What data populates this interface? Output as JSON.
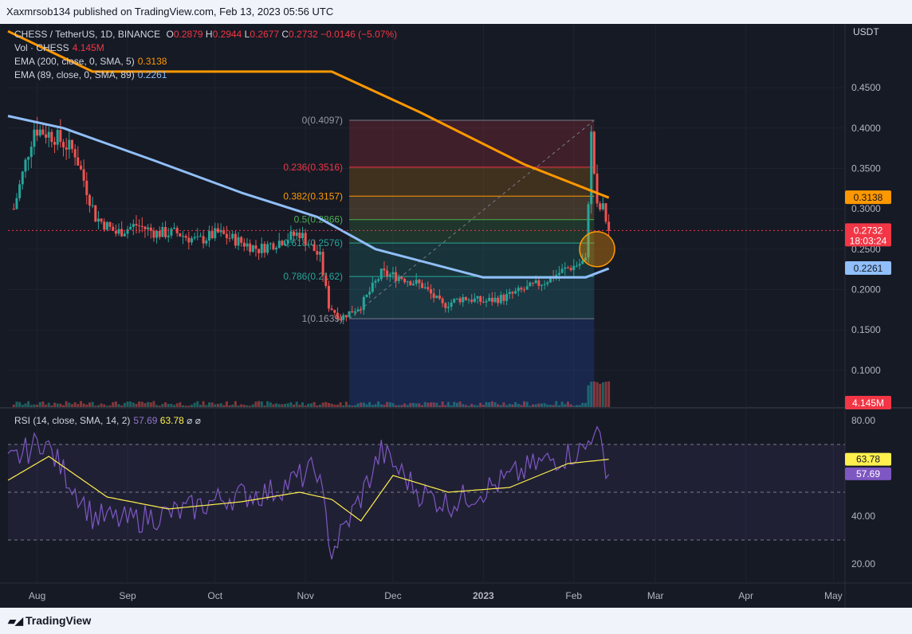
{
  "header": {
    "published": "Xaxmrsob134 published on TradingView.com, Feb 13, 2023 05:56 UTC"
  },
  "legend": {
    "symbol": "CHESS / TetherUS, 1D, BINANCE",
    "o_label": "O",
    "o": "0.2879",
    "h_label": "H",
    "h": "0.2944",
    "l_label": "L",
    "l": "0.2677",
    "c_label": "C",
    "c": "0.2732",
    "change": "−0.0146 (−5.07%)",
    "vol_label": "Vol · CHESS",
    "vol": "4.145M",
    "ema200_label": "EMA (200, close, 0, SMA, 5)",
    "ema200": "0.3138",
    "ema89_label": "EMA (89, close, 0, SMA, 89)",
    "ema89": "0.2261",
    "rsi_label": "RSI (14, close, SMA, 14, 2)",
    "rsi": "57.69",
    "rsi_sma": "63.78",
    "rsi_extra": "⌀ ⌀"
  },
  "price_axis": {
    "currency": "USDT",
    "ticks": [
      "0.4500",
      "0.4000",
      "0.3500",
      "0.3000",
      "0.2500",
      "0.2000",
      "0.1500",
      "0.1000"
    ],
    "current_price": "0.2732",
    "countdown": "18:03:24",
    "ema200_tag": "0.3138",
    "ema89_tag": "0.2261",
    "volume_tag": "4.145M"
  },
  "rsi_axis": {
    "ticks": [
      "80.00",
      "40.00",
      "20.00"
    ],
    "sma_tag": "63.78",
    "rsi_tag": "57.69"
  },
  "time_axis": [
    "Aug",
    "Sep",
    "Oct",
    "Nov",
    "Dec",
    "2023",
    "Feb",
    "Mar",
    "Apr",
    "May"
  ],
  "fib_levels": [
    {
      "label": "0(0.4097)"
    },
    {
      "label": "0.236(0.3516)"
    },
    {
      "label": "0.382(0.3157)"
    },
    {
      "label": "0.5(0.2866)"
    },
    {
      "label": "0.618(0.2576)"
    },
    {
      "label": "0.786(0.2162)"
    },
    {
      "label": "1(0.1639)"
    }
  ],
  "footer": {
    "brand": "TradingView"
  },
  "colors": {
    "up": "#26a69a",
    "down": "#ef5350",
    "ema200": "#ff9800",
    "ema89": "#90bff9",
    "rsi": "#7e57c2",
    "rsi_sma": "#fff04d",
    "bg": "#161a25"
  },
  "chart_data": {
    "type": "candlestick",
    "symbol": "CHESS / TetherUS, 1D, BINANCE",
    "ylim": [
      0.06,
      0.48
    ],
    "x_range": [
      "2022-07-22",
      "2023-05-05"
    ],
    "ohlc": {
      "open": 0.2879,
      "high": 0.2944,
      "low": 0.2677,
      "close": 0.2732
    },
    "price_anchors": [
      [
        "2022-07-24",
        0.3
      ],
      [
        "2022-07-31",
        0.4
      ],
      [
        "2022-08-07",
        0.39
      ],
      [
        "2022-08-14",
        0.37
      ],
      [
        "2022-08-21",
        0.29
      ],
      [
        "2022-08-28",
        0.27
      ],
      [
        "2022-09-04",
        0.28
      ],
      [
        "2022-09-11",
        0.27
      ],
      [
        "2022-09-18",
        0.27
      ],
      [
        "2022-09-25",
        0.26
      ],
      [
        "2022-10-02",
        0.27
      ],
      [
        "2022-10-09",
        0.26
      ],
      [
        "2022-10-16",
        0.25
      ],
      [
        "2022-10-23",
        0.26
      ],
      [
        "2022-10-30",
        0.27
      ],
      [
        "2022-11-06",
        0.24
      ],
      [
        "2022-11-09",
        0.18
      ],
      [
        "2022-11-13",
        0.165
      ],
      [
        "2022-11-20",
        0.18
      ],
      [
        "2022-11-27",
        0.22
      ],
      [
        "2022-12-04",
        0.215
      ],
      [
        "2022-12-11",
        0.205
      ],
      [
        "2022-12-18",
        0.18
      ],
      [
        "2022-12-25",
        0.19
      ],
      [
        "2023-01-01",
        0.185
      ],
      [
        "2023-01-08",
        0.19
      ],
      [
        "2023-01-15",
        0.2
      ],
      [
        "2023-01-22",
        0.21
      ],
      [
        "2023-01-29",
        0.225
      ],
      [
        "2023-02-05",
        0.235
      ],
      [
        "2023-02-07",
        0.39
      ],
      [
        "2023-02-09",
        0.3
      ],
      [
        "2023-02-11",
        0.3
      ],
      [
        "2023-02-13",
        0.2732
      ]
    ],
    "ema200": [
      [
        "2022-07-22",
        0.52
      ],
      [
        "2022-08-20",
        0.47
      ],
      [
        "2022-11-10",
        0.47
      ],
      [
        "2022-12-10",
        0.42
      ],
      [
        "2023-01-15",
        0.355
      ],
      [
        "2023-02-13",
        0.3138
      ]
    ],
    "ema89": [
      [
        "2022-07-22",
        0.415
      ],
      [
        "2022-08-10",
        0.4
      ],
      [
        "2022-09-10",
        0.36
      ],
      [
        "2022-10-10",
        0.32
      ],
      [
        "2022-11-05",
        0.29
      ],
      [
        "2022-11-25",
        0.25
      ],
      [
        "2023-01-01",
        0.215
      ],
      [
        "2023-02-05",
        0.215
      ],
      [
        "2023-02-13",
        0.2261
      ]
    ],
    "fib": {
      "start": "2022-11-16",
      "end": "2023-02-08",
      "levels": [
        {
          "ratio": 0,
          "price": 0.4097
        },
        {
          "ratio": 0.236,
          "price": 0.3516
        },
        {
          "ratio": 0.382,
          "price": 0.3157
        },
        {
          "ratio": 0.5,
          "price": 0.2866
        },
        {
          "ratio": 0.618,
          "price": 0.2576
        },
        {
          "ratio": 0.786,
          "price": 0.2162
        },
        {
          "ratio": 1,
          "price": 0.1639
        }
      ]
    },
    "highlight_circle": {
      "date": "2023-02-09",
      "price": 0.25
    },
    "rsi": {
      "ylim": [
        10,
        90
      ],
      "bands": [
        30,
        50,
        70
      ],
      "last": 57.69,
      "sma_last": 63.78,
      "anchors": [
        [
          "2022-07-22",
          62
        ],
        [
          "2022-08-03",
          72
        ],
        [
          "2022-08-20",
          40
        ],
        [
          "2022-09-01",
          38
        ],
        [
          "2022-09-20",
          42
        ],
        [
          "2022-10-05",
          48
        ],
        [
          "2022-10-20",
          50
        ],
        [
          "2022-11-05",
          60
        ],
        [
          "2022-11-10",
          25
        ],
        [
          "2022-11-20",
          48
        ],
        [
          "2022-11-27",
          67
        ],
        [
          "2022-12-10",
          50
        ],
        [
          "2022-12-20",
          45
        ],
        [
          "2023-01-05",
          53
        ],
        [
          "2023-01-20",
          62
        ],
        [
          "2023-02-05",
          68
        ],
        [
          "2023-02-08",
          78
        ],
        [
          "2023-02-13",
          57.69
        ]
      ],
      "sma_anchors": [
        [
          "2022-07-22",
          55
        ],
        [
          "2022-08-05",
          65
        ],
        [
          "2022-08-25",
          48
        ],
        [
          "2022-09-15",
          43
        ],
        [
          "2022-10-10",
          46
        ],
        [
          "2022-10-30",
          50
        ],
        [
          "2022-11-10",
          47
        ],
        [
          "2022-11-20",
          38
        ],
        [
          "2022-12-01",
          57
        ],
        [
          "2022-12-20",
          50
        ],
        [
          "2023-01-10",
          52
        ],
        [
          "2023-01-30",
          62
        ],
        [
          "2023-02-13",
          63.78
        ]
      ]
    }
  }
}
